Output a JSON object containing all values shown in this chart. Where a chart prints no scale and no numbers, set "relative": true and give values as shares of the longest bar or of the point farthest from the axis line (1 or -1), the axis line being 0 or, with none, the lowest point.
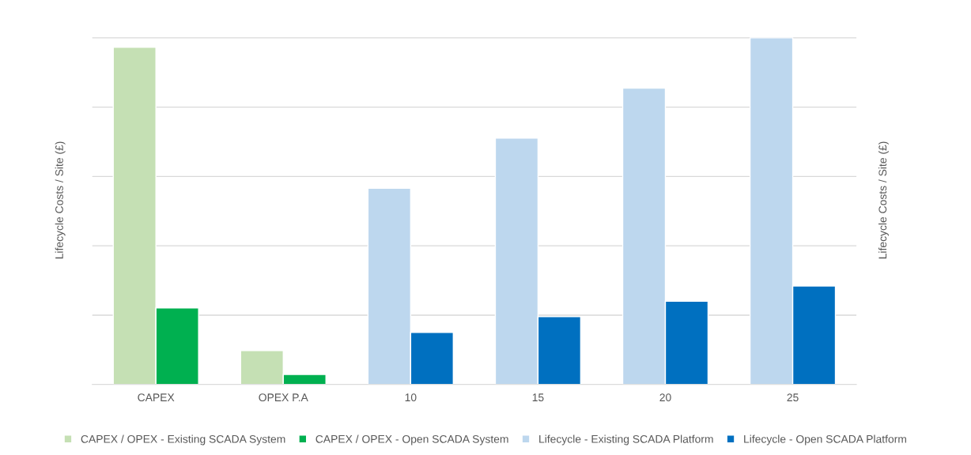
{
  "chart_data": {
    "type": "bar",
    "relative": true,
    "categories": [
      "CAPEX",
      "OPEX P.A",
      "10",
      "15",
      "20",
      "25"
    ],
    "ylabel": "Lifecycle Costs / Site (£)",
    "y2label": "Lifecycle Costs / Site (£)",
    "series": [
      {
        "name": "CAPEX / OPEX - Existing SCADA System",
        "color": "#c5e0b4",
        "values": [
          0.973,
          0.098,
          null,
          null,
          null,
          null
        ]
      },
      {
        "name": "CAPEX / OPEX - Open SCADA System",
        "color": "#00b050",
        "values": [
          0.221,
          0.029,
          null,
          null,
          null,
          null
        ]
      },
      {
        "name": "Lifecycle - Existing SCADA Platform",
        "color": "#bdd7ee",
        "values": [
          null,
          null,
          0.566,
          0.711,
          0.855,
          1.0
        ]
      },
      {
        "name": "Lifecycle - Open SCADA Platform",
        "color": "#0070c0",
        "values": [
          null,
          null,
          0.15,
          0.196,
          0.24,
          0.284
        ]
      }
    ],
    "grid": "y",
    "legend": "bottom"
  }
}
